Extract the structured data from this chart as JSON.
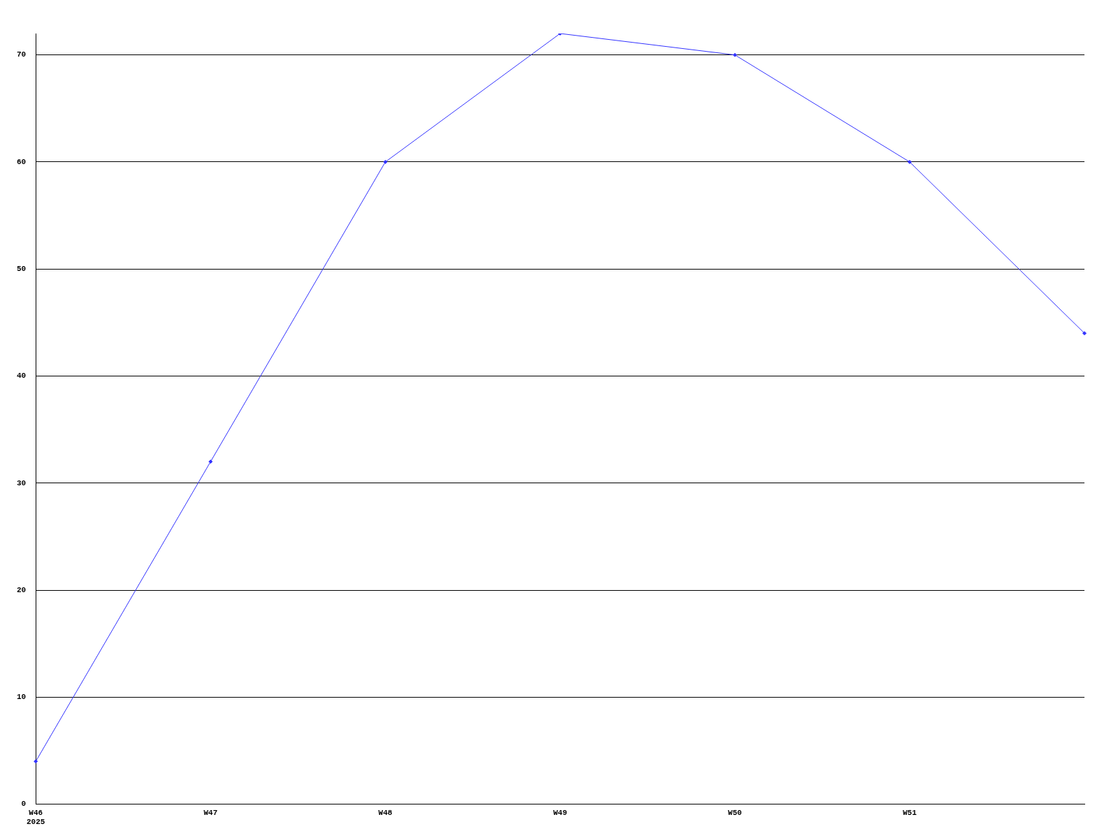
{
  "chart_data": {
    "type": "line",
    "categories": [
      "W46\n2025",
      "W47",
      "W48",
      "W49",
      "W50",
      "W51",
      null
    ],
    "series": [
      {
        "color": "#3333ff",
        "values": [
          4,
          32,
          60,
          72,
          70,
          60,
          44
        ]
      }
    ],
    "ylim": [
      0,
      72
    ],
    "yticks": [
      0,
      10,
      20,
      30,
      40,
      50,
      60,
      70
    ],
    "grid": "y",
    "legend": false,
    "marker": "diamond",
    "line_style": "solid"
  }
}
